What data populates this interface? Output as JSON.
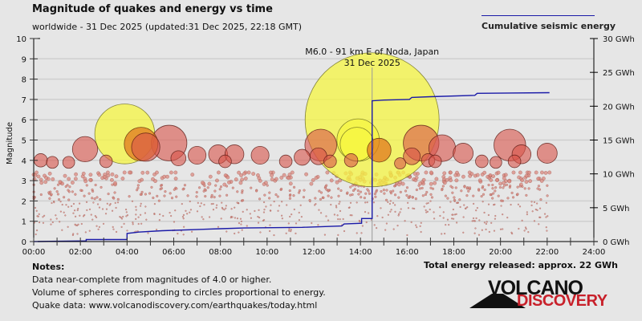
{
  "header": {
    "title": "Magnitude of quakes and energy vs time",
    "subtitle": "worldwide - 31 Dec 2025 (updated:31 Dec 2025, 22:18 GMT)"
  },
  "legend": {
    "label": "Cumulative seismic energy",
    "color": "#1a1aa8"
  },
  "notes": {
    "heading": "Notes:",
    "lines": [
      "Data near-complete from magnitudes of 4.0 or higher.",
      "Volume of spheres corresponding to circles proportional to energy.",
      "Quake data: www.volcanodiscovery.com/earthquakes/today.html"
    ]
  },
  "total_energy": "Total energy released: approx. 22 GWh",
  "logo": {
    "line1": "VOLCANO",
    "line2": "DISCOVERY"
  },
  "chart_data": {
    "type": "scatter",
    "title": "Magnitude of quakes and energy vs time",
    "xlabel": "",
    "ylabel": "Magnitude",
    "y2label": "Cumulative seismic energy",
    "xlim": [
      0,
      24
    ],
    "ylim": [
      0,
      10
    ],
    "y2lim": [
      0,
      30
    ],
    "grid": true,
    "legend_position": "top-right",
    "x_ticks": [
      "00:00",
      "02:00",
      "04:00",
      "06:00",
      "08:00",
      "10:00",
      "12:00",
      "14:00",
      "16:00",
      "18:00",
      "20:00",
      "22:00",
      "24:00"
    ],
    "y_ticks": [
      "0",
      "1",
      "2",
      "3",
      "4",
      "5",
      "6",
      "7",
      "8",
      "9",
      "10"
    ],
    "y2_ticks": [
      "0 GWh",
      "5 GWh",
      "10 GWh",
      "15 GWh",
      "20 GWh",
      "25 GWh",
      "30 GWh"
    ],
    "annotation": {
      "text1": "M6.0 - 91 km E of Noda, Japan",
      "text2": "31 Dec 2025",
      "x": 14.5,
      "mag": 6.0
    },
    "highlight_color": "#f5f542",
    "quake_color": "#d9534a",
    "major_quakes": [
      {
        "t": 14.5,
        "mag": 6.0,
        "highlight": true
      },
      {
        "t": 3.9,
        "mag": 5.3,
        "highlight": true
      },
      {
        "t": 13.9,
        "mag": 5.0,
        "highlight": true
      },
      {
        "t": 13.85,
        "mag": 4.8,
        "highlight": true
      },
      {
        "t": 4.6,
        "mag": 4.8,
        "orange": true
      },
      {
        "t": 14.8,
        "mag": 4.5,
        "orange": true
      },
      {
        "t": 4.8,
        "mag": 4.65
      },
      {
        "t": 5.8,
        "mag": 4.85
      },
      {
        "t": 2.2,
        "mag": 4.55
      },
      {
        "t": 12.3,
        "mag": 4.75
      },
      {
        "t": 16.6,
        "mag": 4.85
      },
      {
        "t": 17.5,
        "mag": 4.6
      },
      {
        "t": 20.4,
        "mag": 4.75
      },
      {
        "t": 16.2,
        "mag": 4.2
      },
      {
        "t": 18.4,
        "mag": 4.35
      },
      {
        "t": 20.9,
        "mag": 4.3
      },
      {
        "t": 22.0,
        "mag": 4.35
      },
      {
        "t": 7.0,
        "mag": 4.25
      },
      {
        "t": 7.9,
        "mag": 4.3
      },
      {
        "t": 8.6,
        "mag": 4.3
      },
      {
        "t": 9.7,
        "mag": 4.25
      },
      {
        "t": 11.5,
        "mag": 4.15
      },
      {
        "t": 12.2,
        "mag": 4.2
      },
      {
        "t": 6.2,
        "mag": 4.1
      },
      {
        "t": 0.3,
        "mag": 4.0
      },
      {
        "t": 0.8,
        "mag": 3.9
      },
      {
        "t": 1.5,
        "mag": 3.9
      },
      {
        "t": 3.1,
        "mag": 3.95
      },
      {
        "t": 8.2,
        "mag": 3.95
      },
      {
        "t": 12.7,
        "mag": 3.95
      },
      {
        "t": 15.7,
        "mag": 3.85
      },
      {
        "t": 17.2,
        "mag": 3.95
      },
      {
        "t": 19.2,
        "mag": 3.95
      },
      {
        "t": 19.8,
        "mag": 3.9
      },
      {
        "t": 20.6,
        "mag": 3.95
      },
      {
        "t": 16.9,
        "mag": 4.0
      },
      {
        "t": 10.8,
        "mag": 3.95
      },
      {
        "t": 13.6,
        "mag": 4.0
      }
    ],
    "cumulative_energy_gwh": [
      {
        "t": 0.0,
        "e": 0.0
      },
      {
        "t": 2.25,
        "e": 0.1
      },
      {
        "t": 2.25,
        "e": 0.3
      },
      {
        "t": 4.0,
        "e": 0.3
      },
      {
        "t": 4.0,
        "e": 1.2
      },
      {
        "t": 4.5,
        "e": 1.4
      },
      {
        "t": 5.5,
        "e": 1.6
      },
      {
        "t": 8.0,
        "e": 1.9
      },
      {
        "t": 9.0,
        "e": 2.0
      },
      {
        "t": 11.5,
        "e": 2.1
      },
      {
        "t": 13.2,
        "e": 2.3
      },
      {
        "t": 13.3,
        "e": 2.6
      },
      {
        "t": 14.05,
        "e": 2.7
      },
      {
        "t": 14.05,
        "e": 3.4
      },
      {
        "t": 14.5,
        "e": 3.4
      },
      {
        "t": 14.5,
        "e": 20.8
      },
      {
        "t": 15.0,
        "e": 20.9
      },
      {
        "t": 16.1,
        "e": 21.0
      },
      {
        "t": 16.2,
        "e": 21.3
      },
      {
        "t": 17.0,
        "e": 21.4
      },
      {
        "t": 18.9,
        "e": 21.6
      },
      {
        "t": 19.0,
        "e": 21.9
      },
      {
        "t": 22.1,
        "e": 22.0
      }
    ]
  }
}
